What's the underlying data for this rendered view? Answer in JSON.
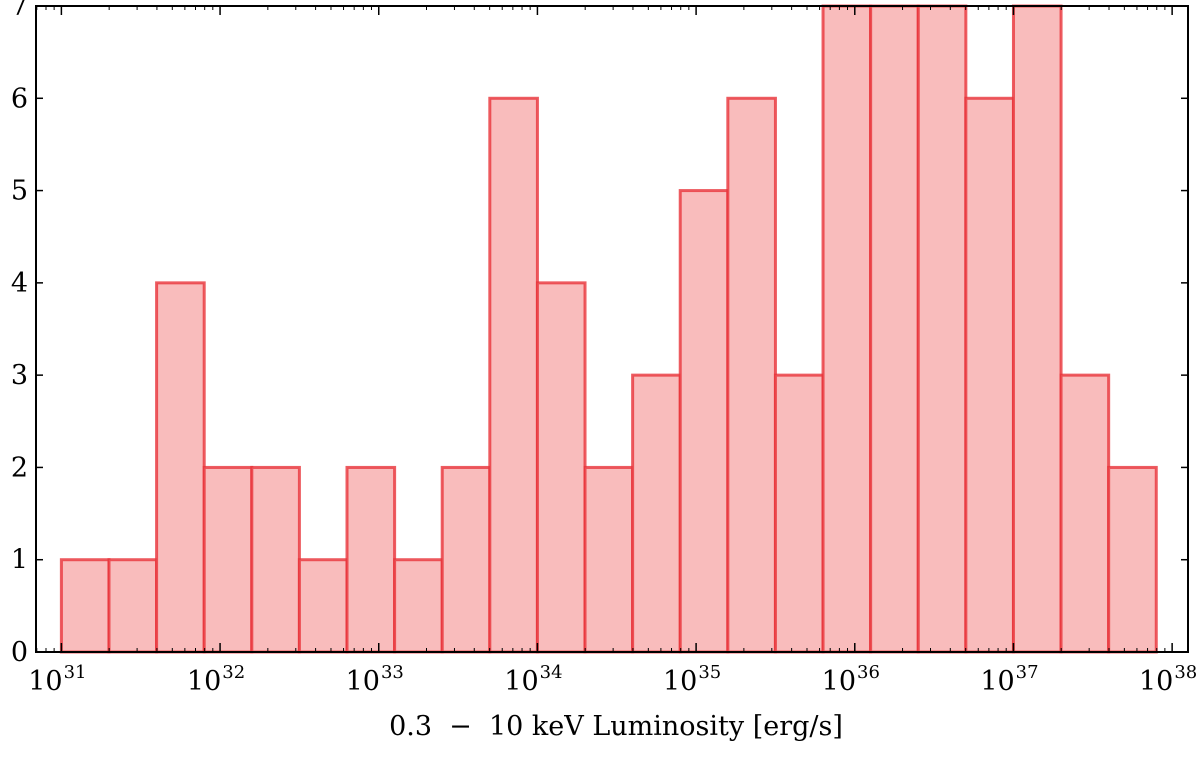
{
  "chart_data": {
    "type": "bar",
    "title": "",
    "xlabel": "0.3  −  10 keV Luminosity [erg/s]",
    "ylabel": "",
    "x_scale": "log",
    "x_range": [
      1e+31,
      1e+38
    ],
    "ylim": [
      0,
      7
    ],
    "grid": false,
    "bin_edges_log10": [
      31.0,
      31.3,
      31.6,
      31.9,
      32.2,
      32.5,
      32.8,
      33.1,
      33.4,
      33.7,
      34.0,
      34.3,
      34.6,
      34.9,
      35.2,
      35.5,
      35.8,
      36.1,
      36.4,
      36.7,
      37.0,
      37.3,
      37.6,
      37.9
    ],
    "values": [
      1,
      1,
      4,
      2,
      2,
      1,
      2,
      1,
      2,
      6,
      4,
      2,
      3,
      5,
      6,
      3,
      7,
      7,
      7,
      6,
      7,
      3,
      2
    ],
    "x_ticks": [
      {
        "base": "10",
        "exp": "31",
        "log10": 31
      },
      {
        "base": "10",
        "exp": "32",
        "log10": 32
      },
      {
        "base": "10",
        "exp": "33",
        "log10": 33
      },
      {
        "base": "10",
        "exp": "34",
        "log10": 34
      },
      {
        "base": "10",
        "exp": "35",
        "log10": 35
      },
      {
        "base": "10",
        "exp": "36",
        "log10": 36
      },
      {
        "base": "10",
        "exp": "37",
        "log10": 37
      },
      {
        "base": "10",
        "exp": "38",
        "log10": 38
      }
    ],
    "y_ticks": [
      "0",
      "1",
      "2",
      "3",
      "4",
      "5",
      "6",
      "7"
    ],
    "colors": {
      "bar_fill": "#f9bcbc",
      "bar_edge": "#e8333a",
      "axis": "#000000"
    }
  }
}
